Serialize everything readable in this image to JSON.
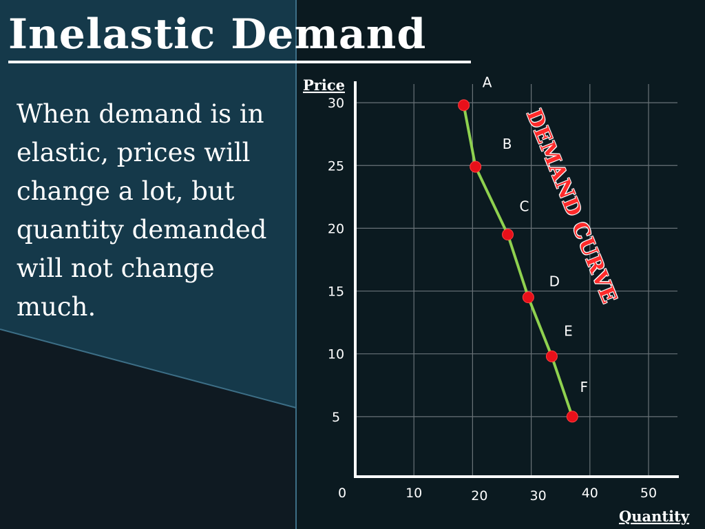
{
  "slide": {
    "title": "Inelastic Demand",
    "body": "When demand is in elastic, prices will change a lot, but quantity demanded will not change much."
  },
  "annotation": {
    "text": "DEMAND CURVE",
    "color": "#ff2a2a"
  },
  "colors": {
    "line": "#8fd14f",
    "points": "#e8101a",
    "grid": "#6a7378",
    "axes": "#ffffff",
    "panel": "#0b1a20",
    "teal": "#15394a"
  },
  "chart_data": {
    "type": "line",
    "title": "",
    "xlabel": "Quantity",
    "ylabel": "Price",
    "xlim": [
      0,
      55
    ],
    "ylim": [
      0,
      33
    ],
    "x_ticks": [
      0,
      10,
      20,
      30,
      40,
      50
    ],
    "y_ticks": [
      5,
      10,
      15,
      20,
      25,
      30
    ],
    "grid": true,
    "series": [
      {
        "name": "",
        "points": [
          {
            "label": "A",
            "x": 18.5,
            "y": 29.8
          },
          {
            "label": "B",
            "x": 20.5,
            "y": 24.9
          },
          {
            "label": "C",
            "x": 26,
            "y": 19.5
          },
          {
            "label": "D",
            "x": 29.5,
            "y": 14.5
          },
          {
            "label": "E",
            "x": 33.5,
            "y": 9.8
          },
          {
            "label": "F",
            "x": 37,
            "y": 5
          }
        ]
      }
    ]
  }
}
